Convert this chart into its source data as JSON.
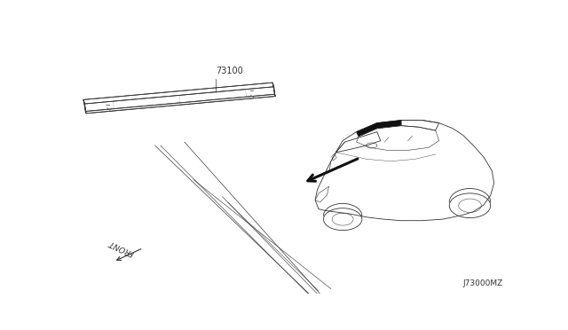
{
  "background_color": "#ffffff",
  "part_number_label": "73100",
  "front_label": "FRONT",
  "diagram_code": "J73000MZ",
  "line_color": "#333333",
  "dark_color": "#111111"
}
